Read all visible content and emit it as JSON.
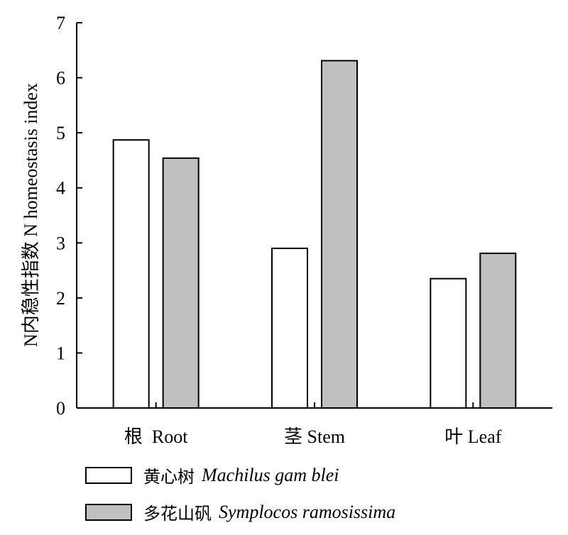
{
  "chart_data": {
    "type": "bar",
    "categories": [
      "根  Root",
      "茎 Stem",
      "叶 Leaf"
    ],
    "series": [
      {
        "name": "黄心树 Machilus gam blei",
        "values": [
          4.87,
          2.9,
          2.35
        ],
        "color": "#ffffff"
      },
      {
        "name": "多花山矾 Symplocos ramosissima",
        "values": [
          4.54,
          6.31,
          2.81
        ],
        "color": "#c0c0c0"
      }
    ],
    "ylabel": "N内稳性指数 N homeostasis index",
    "ylim": [
      0,
      7
    ],
    "yticks": [
      "0",
      "1",
      "2",
      "3",
      "4",
      "5",
      "6",
      "7"
    ],
    "grid": false,
    "legend_position": "bottom"
  },
  "legend": [
    {
      "zh": "黄心树",
      "latin": "Machilus gam blei",
      "color": "#ffffff"
    },
    {
      "zh": "多花山矾",
      "latin": "Symplocos  ramosissima",
      "color": "#c0c0c0"
    }
  ]
}
